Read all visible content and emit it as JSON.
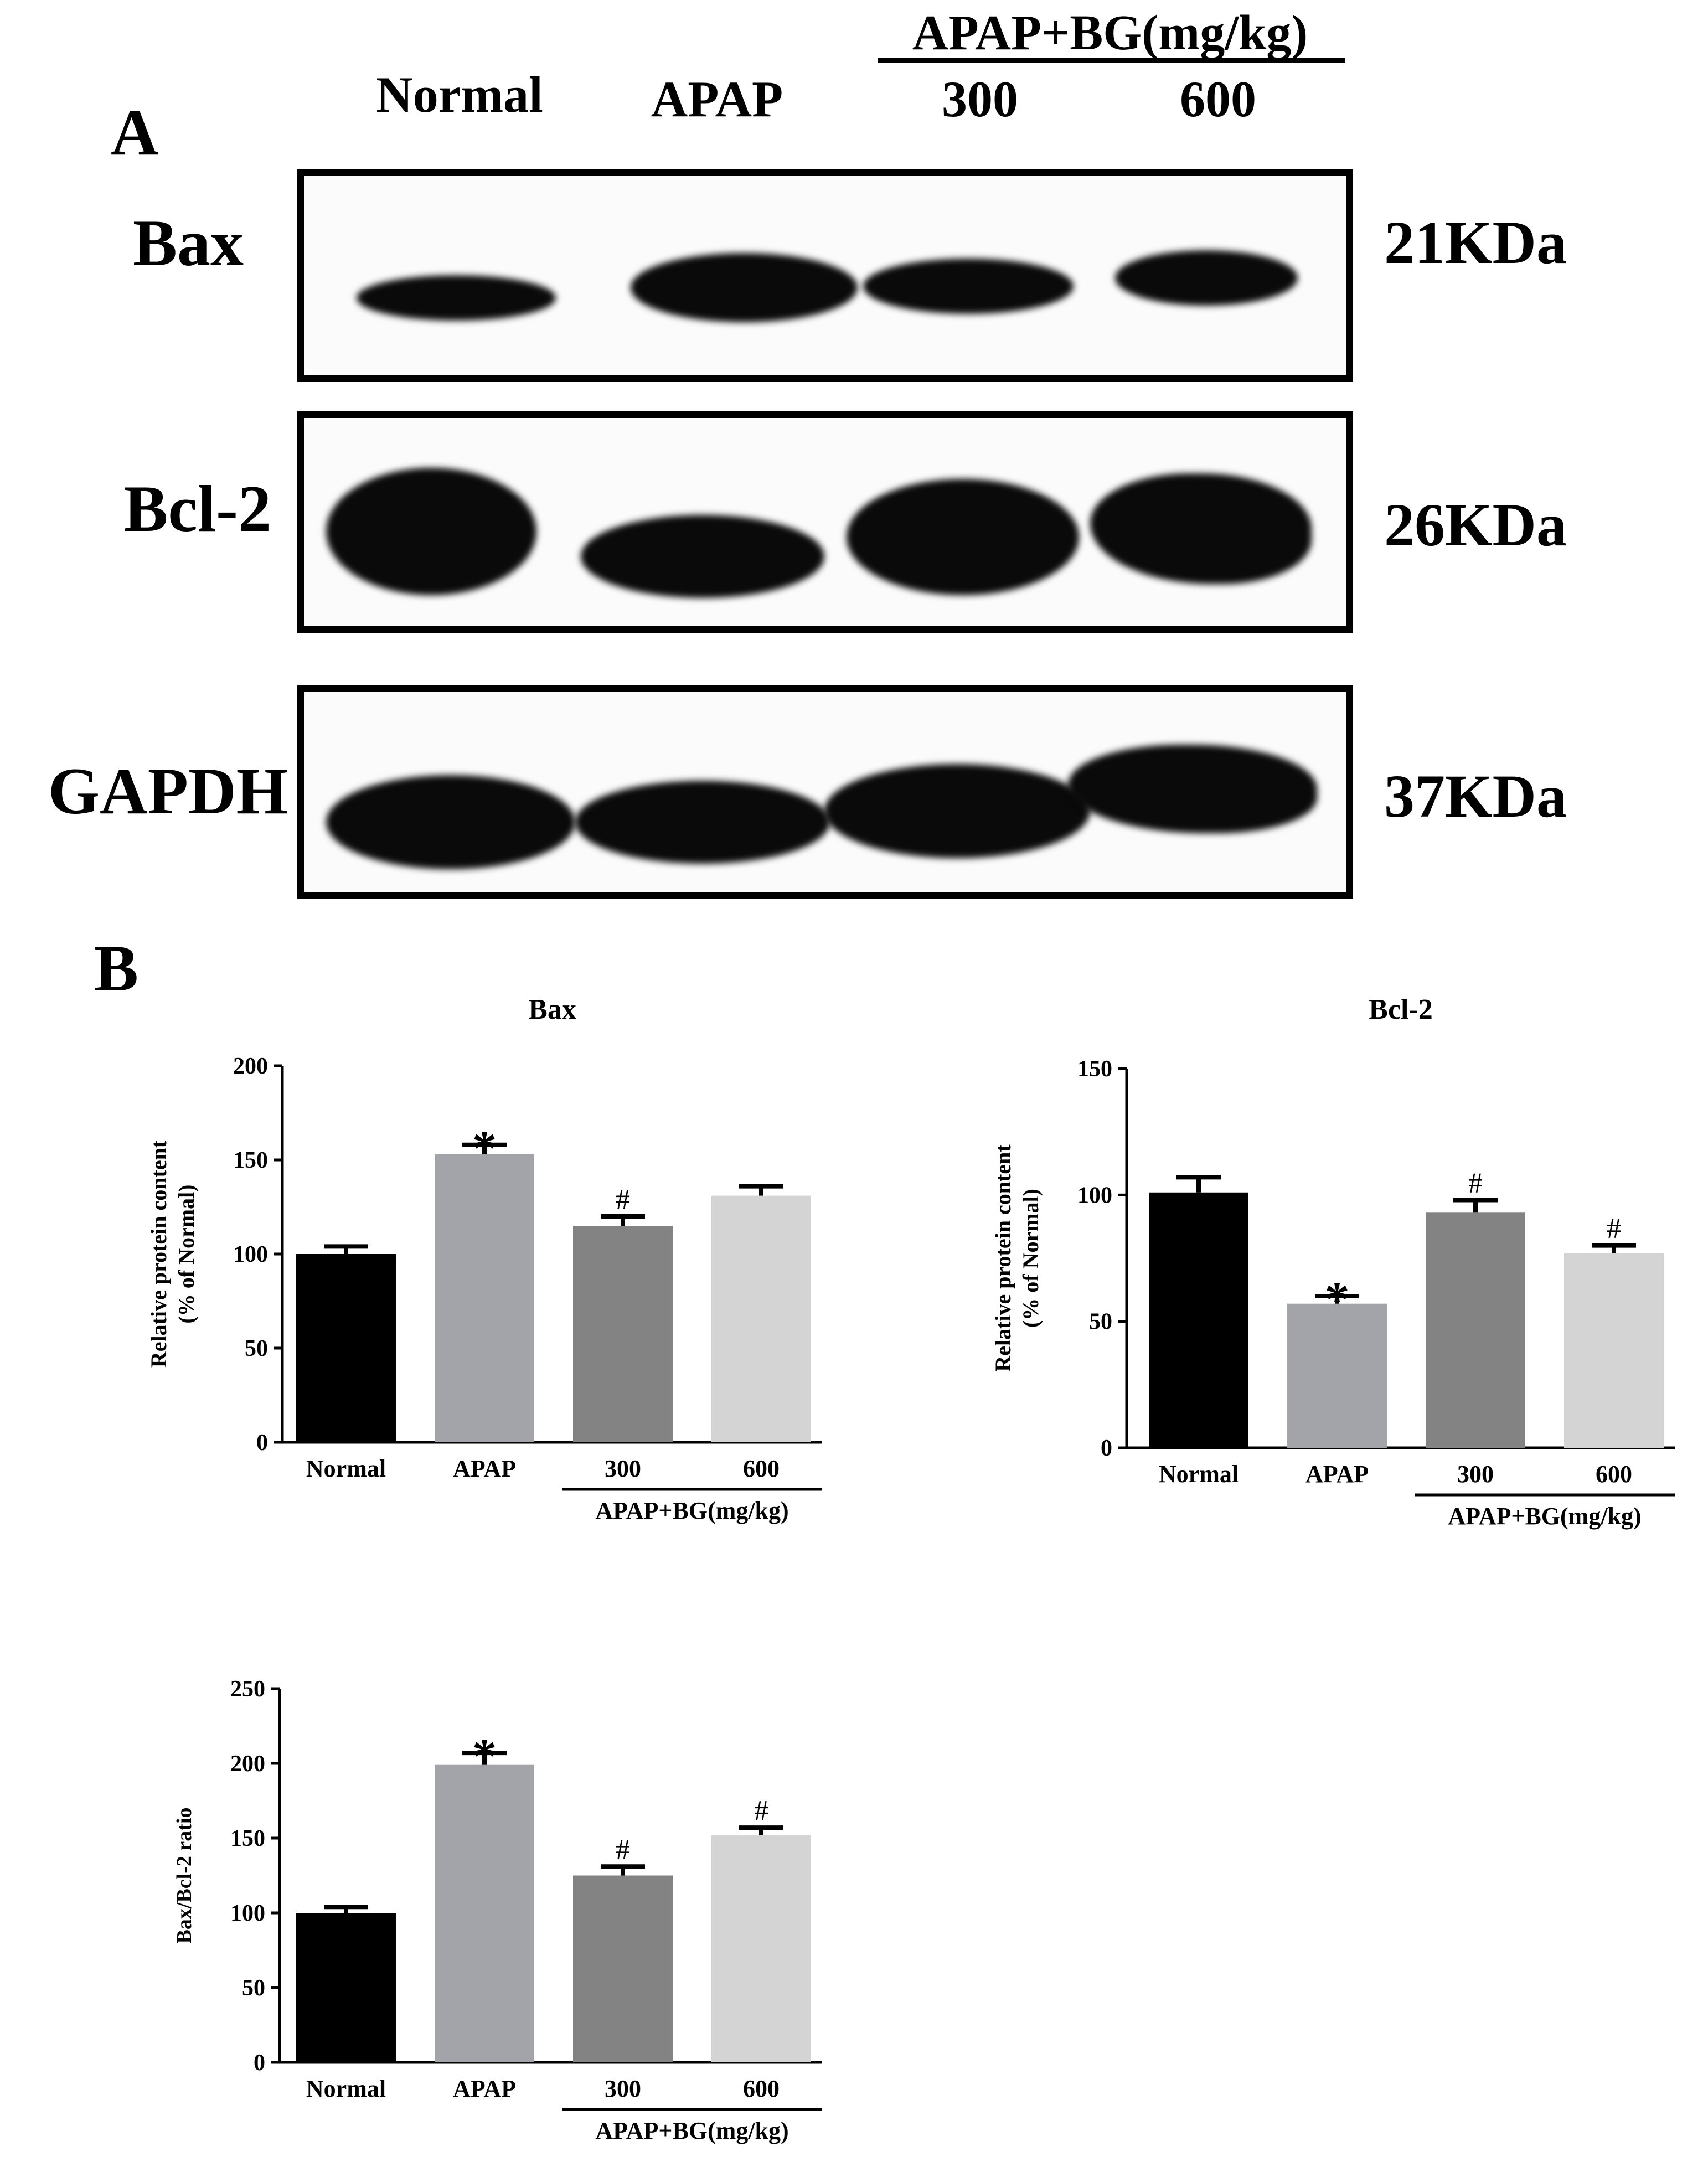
{
  "panel_a": {
    "letter": "A",
    "treatment_group": "APAP+BG(mg/kg)",
    "lanes": [
      "Normal",
      "APAP",
      "300",
      "600"
    ],
    "blots": [
      {
        "protein": "Bax",
        "kda": "21KDa"
      },
      {
        "protein": "Bcl-2",
        "kda": "26KDa"
      },
      {
        "protein": "GAPDH",
        "kda": "37KDa"
      }
    ]
  },
  "panel_b": {
    "letter": "B"
  },
  "chart_data": [
    {
      "type": "bar",
      "title": "Bax",
      "ylabel": "Relative protein content (% of Normal)",
      "categories": [
        "Normal",
        "APAP",
        "300",
        "600"
      ],
      "group_label": "APAP+BG(mg/kg)",
      "values": [
        100,
        153,
        115,
        131
      ],
      "errors": [
        4,
        5,
        5,
        5
      ],
      "annotations": [
        "",
        "*",
        "#",
        ""
      ],
      "colors": [
        "#000000",
        "#a2a4a9",
        "#838383",
        "#d4d4d4"
      ],
      "ylim": [
        0,
        200
      ],
      "yticks": [
        0,
        50,
        100,
        150,
        200
      ]
    },
    {
      "type": "bar",
      "title": "Bcl-2",
      "ylabel": "Relative protein content (% of Normal)",
      "categories": [
        "Normal",
        "APAP",
        "300",
        "600"
      ],
      "group_label": "APAP+BG(mg/kg)",
      "values": [
        101,
        57,
        93,
        77
      ],
      "errors": [
        6,
        3,
        5,
        3
      ],
      "annotations": [
        "",
        "*",
        "#",
        "#"
      ],
      "colors": [
        "#000000",
        "#a2a4a9",
        "#838383",
        "#d4d4d4"
      ],
      "ylim": [
        0,
        150
      ],
      "yticks": [
        0,
        50,
        100,
        150
      ]
    },
    {
      "type": "bar",
      "title": "",
      "ylabel": "Bax/Bcl-2 ratio",
      "categories": [
        "Normal",
        "APAP",
        "300",
        "600"
      ],
      "group_label": "APAP+BG(mg/kg)",
      "values": [
        100,
        199,
        125,
        152
      ],
      "errors": [
        4,
        8,
        6,
        5
      ],
      "annotations": [
        "",
        "*",
        "#",
        "#"
      ],
      "colors": [
        "#000000",
        "#a2a4a9",
        "#838383",
        "#d4d4d4"
      ],
      "ylim": [
        0,
        250
      ],
      "yticks": [
        0,
        50,
        100,
        150,
        200,
        250
      ]
    }
  ]
}
